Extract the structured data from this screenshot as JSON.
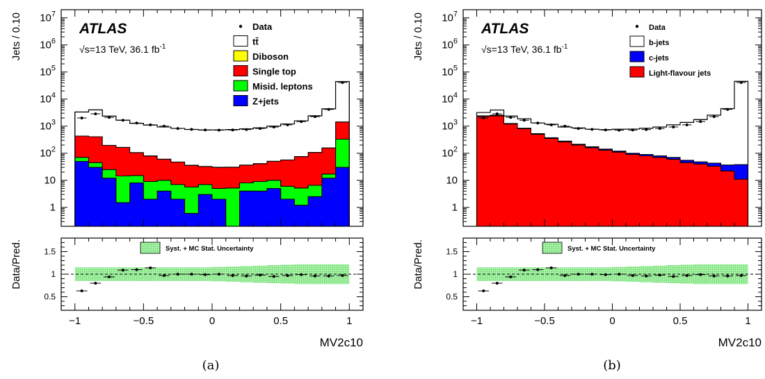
{
  "captions": [
    "(a)",
    "(b)"
  ],
  "chart_data": [
    {
      "type": "bar",
      "subtype": "stacked-histogram-with-ratio",
      "experiment": "ATLAS",
      "energy_label": "√s=13 TeV, 36.1 fb",
      "energy_label_sup": "-1",
      "ylabel": "Jets / 0.10",
      "ratio_ylabel": "Data/Pred.",
      "xlabel": "MV2c10",
      "ylim": [
        0.2,
        20000000
      ],
      "yscale": "log",
      "xlim": [
        -1.1,
        1.1
      ],
      "ratio_ylim": [
        0.2,
        1.8
      ],
      "xticks": [
        "−1",
        "−0.5",
        "0",
        "0.5",
        "1"
      ],
      "yticks": [
        "1",
        "10",
        "10²",
        "10³",
        "10⁴",
        "10⁵",
        "10⁶",
        "10⁷"
      ],
      "ratio_yticks": [
        "0.5",
        "1",
        "1.5"
      ],
      "ratio_legend": "Syst. + MC Stat. Uncertainty",
      "bin_edges": [
        -1.0,
        -0.9,
        -0.8,
        -0.7,
        -0.6,
        -0.5,
        -0.4,
        -0.3,
        -0.2,
        -0.1,
        0.0,
        0.1,
        0.2,
        0.3,
        0.4,
        0.5,
        0.6,
        0.7,
        0.8,
        0.9,
        1.0
      ],
      "legend": [
        {
          "label": "Data",
          "marker": "point"
        },
        {
          "label": "tt̄",
          "color": "#ffffff"
        },
        {
          "label": "Diboson",
          "color": "#ffff00"
        },
        {
          "label": "Single top",
          "color": "#ff0000"
        },
        {
          "label": "Misid. leptons",
          "color": "#00ff00"
        },
        {
          "label": "Z+jets",
          "color": "#0000ff"
        }
      ],
      "stack": [
        {
          "name": "Z+jets",
          "color": "#0000ff",
          "values": [
            50,
            30,
            12,
            1.5,
            8,
            2,
            4,
            2,
            0.6,
            3,
            2,
            0.2,
            4,
            4,
            5,
            2,
            1.2,
            2.5,
            12,
            30
          ]
        },
        {
          "name": "Misid. leptons",
          "color": "#00ff00",
          "values": [
            20,
            15,
            13,
            13,
            7,
            7,
            6,
            5,
            5,
            4,
            3,
            5,
            4,
            5,
            5,
            4,
            4,
            4,
            5,
            300
          ]
        },
        {
          "name": "Single top",
          "color": "#ff0000",
          "values": [
            360,
            360,
            170,
            150,
            90,
            70,
            50,
            40,
            30,
            25,
            25,
            25,
            28,
            32,
            40,
            50,
            70,
            100,
            140,
            1100
          ]
        },
        {
          "name": "Diboson",
          "color": "#ffff00",
          "values": [
            2,
            2,
            1,
            1,
            1,
            1,
            0.5,
            0.5,
            0.5,
            0.5,
            0.5,
            0.5,
            0.5,
            0.5,
            0.5,
            0.5,
            0.5,
            1,
            1,
            3
          ]
        },
        {
          "name": "tt̄",
          "color": "#ffffff",
          "values": [
            2900,
            3600,
            2150,
            1500,
            1170,
            1020,
            870,
            780,
            720,
            690,
            700,
            720,
            760,
            820,
            960,
            1150,
            1500,
            2300,
            4200,
            43000
          ]
        }
      ],
      "data_points": [
        2000,
        2850,
        2100,
        1650,
        1300,
        1120,
        1000,
        820,
        760,
        720,
        710,
        720,
        750,
        820,
        930,
        1120,
        1480,
        2250,
        4150,
        41000
      ],
      "ratio_points": [
        0.63,
        0.8,
        0.94,
        1.09,
        1.1,
        1.14,
        0.97,
        1.0,
        1.0,
        0.99,
        1.0,
        0.97,
        0.96,
        0.98,
        0.95,
        0.97,
        0.99,
        0.96,
        0.96,
        0.97
      ],
      "ratio_band": [
        0.15,
        0.15,
        0.15,
        0.15,
        0.15,
        0.15,
        0.15,
        0.15,
        0.15,
        0.15,
        0.16,
        0.17,
        0.18,
        0.19,
        0.2,
        0.21,
        0.22,
        0.22,
        0.22,
        0.22
      ]
    },
    {
      "type": "bar",
      "subtype": "stacked-histogram-with-ratio",
      "experiment": "ATLAS",
      "energy_label": "√s=13 TeV, 36.1 fb",
      "energy_label_sup": "-1",
      "ylabel": "Jets / 0.10",
      "ratio_ylabel": "Data/Pred.",
      "xlabel": "MV2c10",
      "ylim": [
        0.2,
        20000000
      ],
      "yscale": "log",
      "xlim": [
        -1.1,
        1.1
      ],
      "ratio_ylim": [
        0.2,
        1.8
      ],
      "xticks": [
        "−1",
        "−0.5",
        "0",
        "0.5",
        "1"
      ],
      "yticks": [
        "1",
        "10",
        "10²",
        "10³",
        "10⁴",
        "10⁵",
        "10⁶",
        "10⁷"
      ],
      "ratio_yticks": [
        "0.5",
        "1",
        "1.5"
      ],
      "ratio_legend": "Syst. + MC Stat. Uncertainty",
      "bin_edges": [
        -1.0,
        -0.9,
        -0.8,
        -0.7,
        -0.6,
        -0.5,
        -0.4,
        -0.3,
        -0.2,
        -0.1,
        0.0,
        0.1,
        0.2,
        0.3,
        0.4,
        0.5,
        0.6,
        0.7,
        0.8,
        0.9,
        1.0
      ],
      "legend": [
        {
          "label": "Data",
          "marker": "point"
        },
        {
          "label": "b-jets",
          "color": "#ffffff"
        },
        {
          "label": "c-jets",
          "color": "#0000ff"
        },
        {
          "label": "Light-flavour jets",
          "color": "#ff0000"
        }
      ],
      "stack": [
        {
          "name": "Light-flavour jets",
          "color": "#ff0000",
          "values": [
            2300,
            2400,
            1200,
            800,
            500,
            350,
            260,
            200,
            160,
            130,
            110,
            90,
            80,
            70,
            60,
            45,
            40,
            33,
            22,
            11
          ]
        },
        {
          "name": "c-jets",
          "color": "#0000ff",
          "values": [
            100,
            150,
            60,
            45,
            30,
            25,
            20,
            16,
            14,
            12,
            10,
            10,
            10,
            10,
            10,
            10,
            8,
            10,
            15,
            27
          ]
        },
        {
          "name": "b-jets",
          "color": "#ffffff",
          "values": [
            800,
            1400,
            1100,
            1020,
            790,
            800,
            650,
            640,
            600,
            600,
            650,
            680,
            750,
            850,
            1050,
            1320,
            1700,
            2500,
            4400,
            45000
          ]
        }
      ],
      "data_points": [
        2000,
        2850,
        2100,
        1650,
        1300,
        1120,
        1000,
        820,
        760,
        720,
        710,
        720,
        750,
        820,
        930,
        1120,
        1480,
        2250,
        4150,
        41000
      ],
      "ratio_points": [
        0.63,
        0.8,
        0.94,
        1.09,
        1.1,
        1.14,
        0.97,
        1.0,
        1.0,
        0.99,
        1.0,
        0.97,
        0.96,
        0.98,
        0.95,
        0.97,
        0.99,
        0.96,
        0.96,
        0.97
      ],
      "ratio_band": [
        0.15,
        0.15,
        0.15,
        0.15,
        0.15,
        0.15,
        0.15,
        0.15,
        0.15,
        0.15,
        0.16,
        0.17,
        0.18,
        0.19,
        0.2,
        0.21,
        0.22,
        0.22,
        0.22,
        0.22
      ]
    }
  ]
}
